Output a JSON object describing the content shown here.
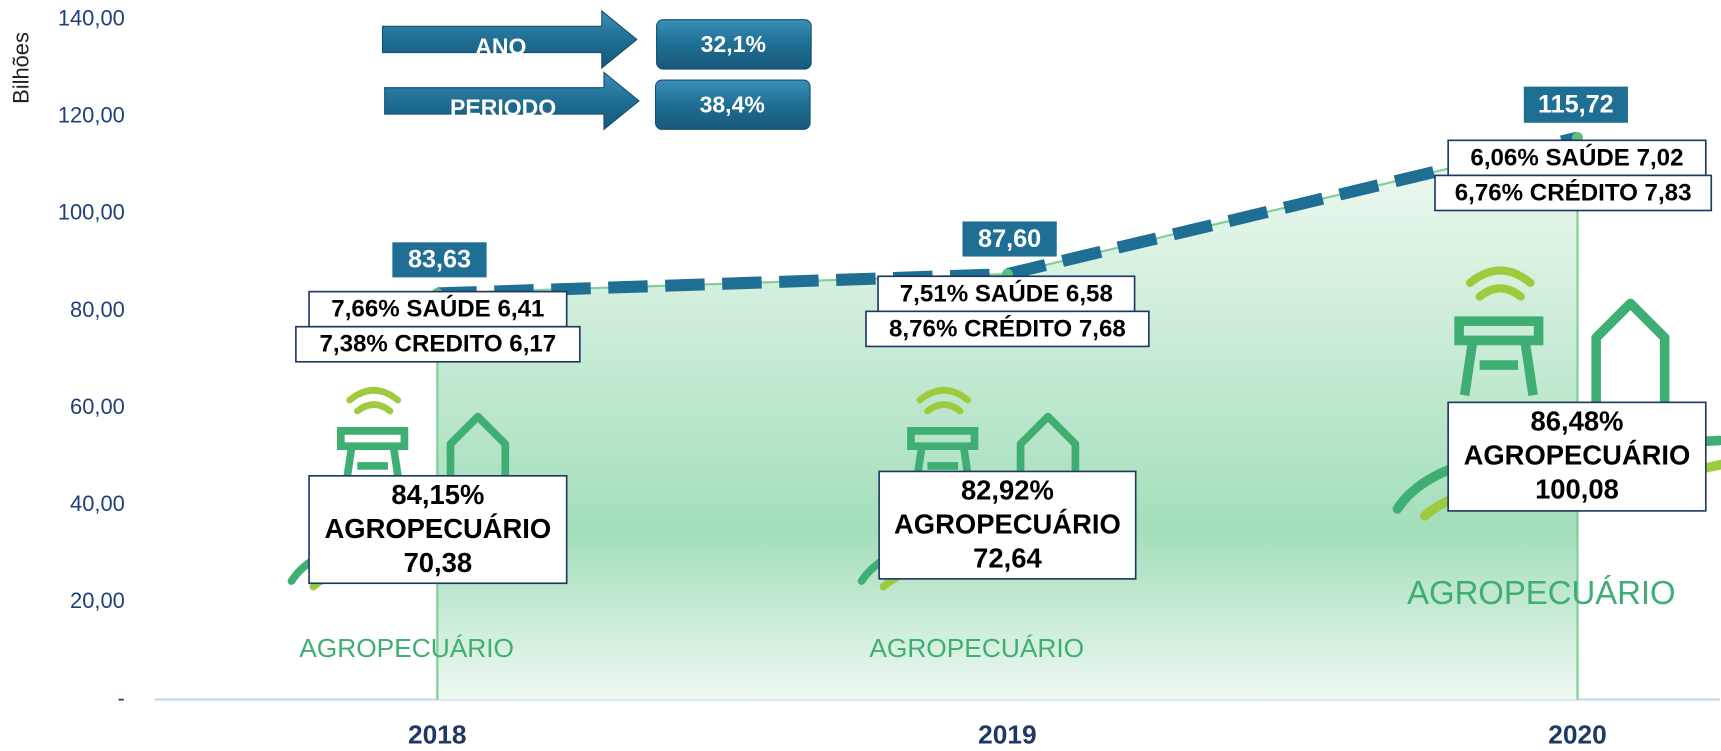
{
  "chart_data": {
    "type": "area",
    "y_label": "Bilhões",
    "categories": [
      "2018",
      "2019",
      "2020"
    ],
    "values": [
      83.63,
      87.6,
      115.72
    ],
    "value_labels": [
      "83,63",
      "87,60",
      "115,72"
    ],
    "color": "#1f6e94",
    "ylim": [
      0,
      140
    ],
    "yticks": [
      {
        "value": 0,
        "label": "-"
      },
      {
        "value": 20,
        "label": "20,00"
      },
      {
        "value": 40,
        "label": "40,00"
      },
      {
        "value": 60,
        "label": "60,00"
      },
      {
        "value": 80,
        "label": "80,00"
      },
      {
        "value": 100,
        "label": "100,00"
      },
      {
        "value": 120,
        "label": "120,00"
      },
      {
        "value": 140,
        "label": "140,00"
      }
    ],
    "kpis": [
      {
        "label": "ANO",
        "value": "32,1%"
      },
      {
        "label": "PERIODO",
        "value": "38,4%"
      }
    ],
    "annotations": [
      {
        "saude": "7,66% SAÚDE  6,41",
        "credito": "7,38% CREDITO  6,17",
        "main": [
          "84,15%",
          "AGROPECUÁRIO",
          "70,38"
        ],
        "logo": "AGROPECUÁRIO"
      },
      {
        "saude": "7,51% SAÚDE  6,58",
        "credito": "8,76% CRÉDITO  7,68",
        "main": [
          "82,92%",
          "AGROPECUÁRIO",
          "72,64"
        ],
        "logo": "AGROPECUÁRIO"
      },
      {
        "saude": "6,06% SAÚDE  7,02",
        "credito": "6,76% CRÉDITO  7,83",
        "main": [
          "86,48%",
          "AGROPECUÁRIO",
          "100,08"
        ],
        "logo": "AGROPECUÁRIO"
      }
    ]
  }
}
